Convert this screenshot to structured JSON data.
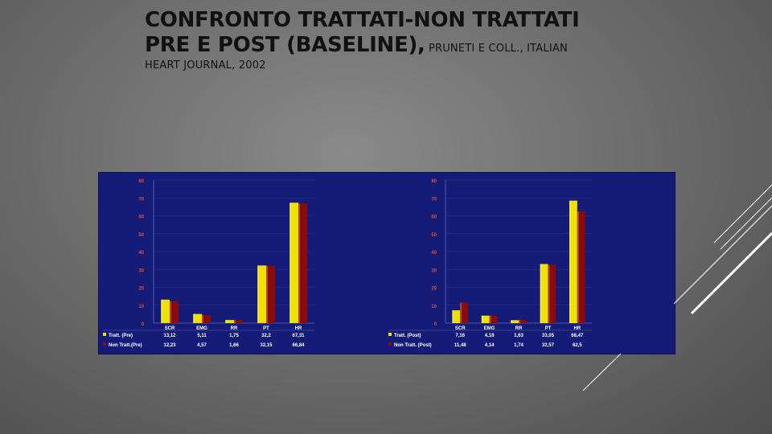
{
  "title": {
    "line1": "CONFRONTO TRATTATI-NON TRATTATI",
    "line2_bold": "PRE E POST (BASELINE),",
    "line2_small": " PRUNETI E COLL., ITALIAN",
    "line3": "HEART JOURNAL, 2002"
  },
  "colors": {
    "series_a": "#f0e000",
    "series_b": "#8b0a0a",
    "panel_bg": "#141c78",
    "tick_text": "#e25030"
  },
  "chart_data": [
    {
      "type": "bar",
      "categories": [
        "SCR",
        "EMG",
        "RR",
        "PT",
        "HR"
      ],
      "ylim": [
        0,
        80
      ],
      "yticks": [
        "0",
        "10",
        "20",
        "30",
        "40",
        "50",
        "60",
        "70",
        "80"
      ],
      "series": [
        {
          "name": "Tratt. (Pre)",
          "values": [
            13.12,
            5.11,
            1.75,
            32.2,
            67.31
          ],
          "labels": [
            "13,12",
            "5,11",
            "1,75",
            "32,2",
            "67,31"
          ]
        },
        {
          "name": "Non Tratt.(Pre)",
          "values": [
            12.23,
            4.57,
            1.66,
            32.15,
            66.84
          ],
          "labels": [
            "12,23",
            "4,57",
            "1,66",
            "32,15",
            "66,84"
          ]
        }
      ]
    },
    {
      "type": "bar",
      "categories": [
        "SCR",
        "EMG",
        "RR",
        "PT",
        "HR"
      ],
      "ylim": [
        0,
        80
      ],
      "yticks": [
        "0",
        "10",
        "20",
        "30",
        "40",
        "50",
        "60",
        "70",
        "80"
      ],
      "series": [
        {
          "name": "Tratt. (Post)",
          "values": [
            7.16,
            4.18,
            1.63,
            33.05,
            68.47
          ],
          "labels": [
            "7,16",
            "4,18",
            "1,63",
            "33,05",
            "68,47"
          ]
        },
        {
          "name": "Non Tratt. (Post)",
          "values": [
            11.48,
            4.14,
            1.74,
            32.57,
            62.5
          ],
          "labels": [
            "11,48",
            "4,14",
            "1,74",
            "32,57",
            "62,5"
          ]
        }
      ]
    }
  ]
}
